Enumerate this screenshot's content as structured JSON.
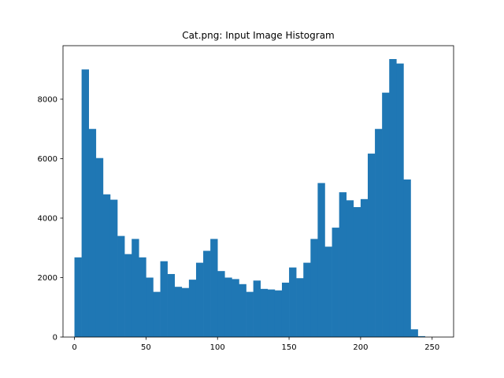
{
  "chart_data": {
    "type": "bar",
    "title": "Cat.png: Input Image Histogram",
    "xlabel": "",
    "ylabel": "",
    "xlim": [
      -8,
      265
    ],
    "ylim": [
      0,
      9800
    ],
    "bin_width": 5,
    "bin_edges_start": 0,
    "values": [
      2680,
      9000,
      7000,
      6020,
      4800,
      4620,
      3400,
      2790,
      3300,
      2680,
      2000,
      1520,
      2550,
      2120,
      1690,
      1650,
      1930,
      2500,
      2900,
      3300,
      2220,
      2000,
      1950,
      1780,
      1520,
      1900,
      1620,
      1600,
      1570,
      1830,
      2340,
      1980,
      2500,
      3300,
      5180,
      3040,
      3680,
      4870,
      4600,
      4370,
      4640,
      6170,
      7000,
      8220,
      9350,
      9200,
      5300,
      260,
      30,
      0
    ],
    "xticks": [
      0,
      50,
      100,
      150,
      200,
      250
    ],
    "yticks": [
      0,
      2000,
      4000,
      6000,
      8000
    ],
    "grid": false,
    "bar_color": "#1f77b4"
  }
}
